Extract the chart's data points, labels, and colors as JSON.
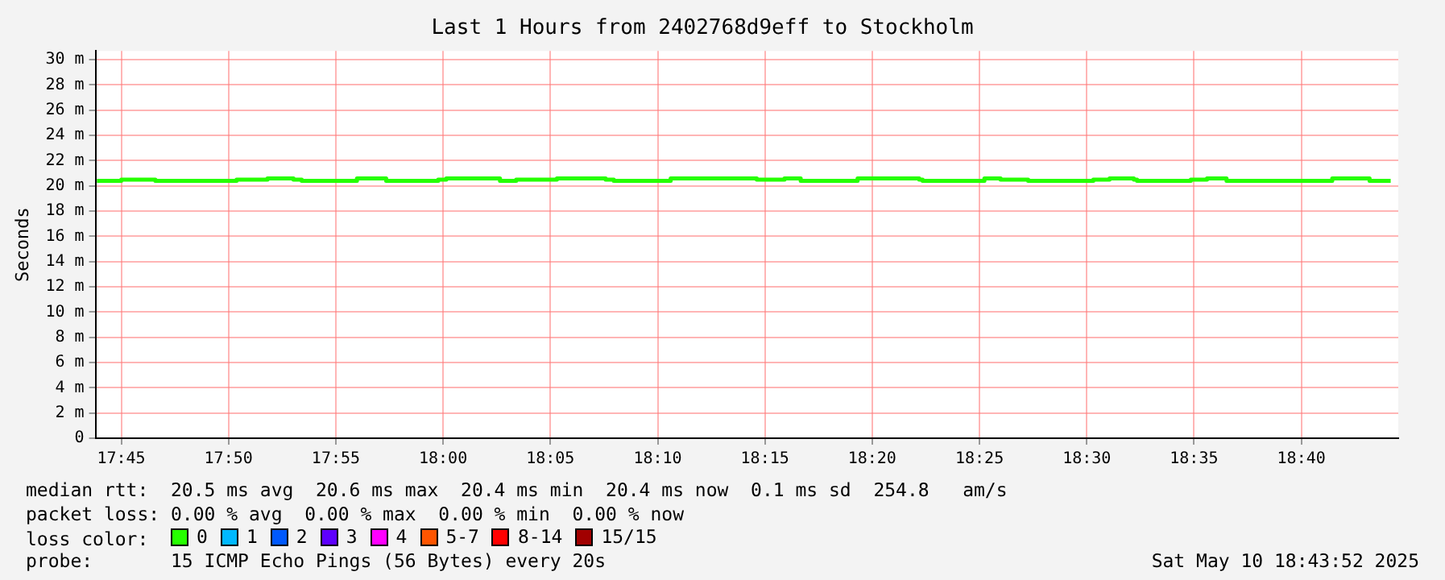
{
  "chart_data": {
    "type": "step",
    "title": "Last 1 Hours from 2402768d9eff to Stockholm",
    "ylabel": "Seconds",
    "legend_title": "loss color:",
    "legend": "bottom",
    "grid": true,
    "marker": "none",
    "x": [
      17.7311,
      17.75,
      17.7765,
      17.8396,
      17.8636,
      17.8838,
      17.8902,
      17.9331,
      17.9558,
      17.9962,
      18.0025,
      18.0442,
      18.0568,
      18.0884,
      18.1263,
      18.1326,
      18.1768,
      18.2437,
      18.2652,
      18.2778,
      18.322,
      18.3699,
      18.3725,
      18.4205,
      18.4331,
      18.4545,
      18.5051,
      18.5177,
      18.5366,
      18.5391,
      18.5808,
      18.5934,
      18.6086,
      18.6907,
      18.7197,
      18.7361
    ],
    "xlim": [
      17.73,
      18.742
    ],
    "xticks": [
      {
        "value": 17.75,
        "label": "17:45"
      },
      {
        "value": 17.8333,
        "label": "17:50"
      },
      {
        "value": 17.9167,
        "label": "17:55"
      },
      {
        "value": 18,
        "label": "18:00"
      },
      {
        "value": 18.0833,
        "label": "18:05"
      },
      {
        "value": 18.1667,
        "label": "18:10"
      },
      {
        "value": 18.25,
        "label": "18:15"
      },
      {
        "value": 18.3333,
        "label": "18:20"
      },
      {
        "value": 18.4167,
        "label": "18:25"
      },
      {
        "value": 18.5,
        "label": "18:30"
      },
      {
        "value": 18.5833,
        "label": "18:35"
      },
      {
        "value": 18.6667,
        "label": "18:40"
      }
    ],
    "ylim": [
      0,
      30.7
    ],
    "yticks": [
      0,
      {
        "value": 2,
        "label": "2 m"
      },
      {
        "value": 4,
        "label": "4 m"
      },
      {
        "value": 6,
        "label": "6 m"
      },
      {
        "value": 8,
        "label": "8 m"
      },
      {
        "value": 10,
        "label": "10 m"
      },
      {
        "value": 12,
        "label": "12 m"
      },
      {
        "value": 14,
        "label": "14 m"
      },
      {
        "value": 16,
        "label": "16 m"
      },
      {
        "value": 18,
        "label": "18 m"
      },
      {
        "value": 20,
        "label": "20 m"
      },
      {
        "value": 22,
        "label": "22 m"
      },
      {
        "value": 24,
        "label": "24 m"
      },
      {
        "value": 26,
        "label": "26 m"
      },
      {
        "value": 28,
        "label": "28 m"
      },
      {
        "value": 30,
        "label": "30 m"
      }
    ],
    "series": [
      {
        "name": "0",
        "color": "#26ff00",
        "values": [
          20.4,
          20.5,
          20.4,
          20.5,
          20.6,
          20.5,
          20.4,
          20.6,
          20.4,
          20.5,
          20.6,
          20.4,
          20.5,
          20.6,
          20.5,
          20.4,
          20.6,
          20.5,
          20.6,
          20.4,
          20.6,
          20.5,
          20.4,
          20.6,
          20.5,
          20.4,
          20.5,
          20.6,
          20.5,
          20.4,
          20.5,
          20.6,
          20.4,
          20.6,
          20.4,
          20.4
        ]
      },
      {
        "name": "1",
        "color": "#00b8ff",
        "values": [
          null,
          null,
          null,
          null,
          null,
          null,
          null,
          null,
          null,
          null,
          null,
          null,
          null,
          null,
          null,
          null,
          null,
          null,
          null,
          null,
          null,
          null,
          null,
          null,
          null,
          null,
          null,
          null,
          null,
          null,
          null,
          null,
          null,
          null,
          null,
          null
        ]
      },
      {
        "name": "2",
        "color": "#0059ff",
        "values": [
          null,
          null,
          null,
          null,
          null,
          null,
          null,
          null,
          null,
          null,
          null,
          null,
          null,
          null,
          null,
          null,
          null,
          null,
          null,
          null,
          null,
          null,
          null,
          null,
          null,
          null,
          null,
          null,
          null,
          null,
          null,
          null,
          null,
          null,
          null,
          null
        ]
      },
      {
        "name": "3",
        "color": "#5e00ff",
        "values": [
          null,
          null,
          null,
          null,
          null,
          null,
          null,
          null,
          null,
          null,
          null,
          null,
          null,
          null,
          null,
          null,
          null,
          null,
          null,
          null,
          null,
          null,
          null,
          null,
          null,
          null,
          null,
          null,
          null,
          null,
          null,
          null,
          null,
          null,
          null,
          null
        ]
      },
      {
        "name": "4",
        "color": "#ff00ff",
        "values": [
          null,
          null,
          null,
          null,
          null,
          null,
          null,
          null,
          null,
          null,
          null,
          null,
          null,
          null,
          null,
          null,
          null,
          null,
          null,
          null,
          null,
          null,
          null,
          null,
          null,
          null,
          null,
          null,
          null,
          null,
          null,
          null,
          null,
          null,
          null,
          null
        ]
      },
      {
        "name": "5-7",
        "color": "#ff5500",
        "values": [
          null,
          null,
          null,
          null,
          null,
          null,
          null,
          null,
          null,
          null,
          null,
          null,
          null,
          null,
          null,
          null,
          null,
          null,
          null,
          null,
          null,
          null,
          null,
          null,
          null,
          null,
          null,
          null,
          null,
          null,
          null,
          null,
          null,
          null,
          null,
          null
        ]
      },
      {
        "name": "8-14",
        "color": "#ff0000",
        "values": [
          null,
          null,
          null,
          null,
          null,
          null,
          null,
          null,
          null,
          null,
          null,
          null,
          null,
          null,
          null,
          null,
          null,
          null,
          null,
          null,
          null,
          null,
          null,
          null,
          null,
          null,
          null,
          null,
          null,
          null,
          null,
          null,
          null,
          null,
          null,
          null
        ]
      },
      {
        "name": "15/15",
        "color": "#a10000",
        "values": [
          null,
          null,
          null,
          null,
          null,
          null,
          null,
          null,
          null,
          null,
          null,
          null,
          null,
          null,
          null,
          null,
          null,
          null,
          null,
          null,
          null,
          null,
          null,
          null,
          null,
          null,
          null,
          null,
          null,
          null,
          null,
          null,
          null,
          null,
          null,
          null
        ]
      }
    ],
    "annotations": [
      "median rtt:  20.5 ms avg  20.6 ms max  20.4 ms min  20.4 ms now  0.1 ms sd  254.8   am/s",
      "packet loss: 0.00 % avg  0.00 % max  0.00 % min  0.00 % now",
      "probe:       15 ICMP Echo Pings (56 Bytes) every 20s",
      "Sat May 10 18:43:52 2025"
    ]
  }
}
